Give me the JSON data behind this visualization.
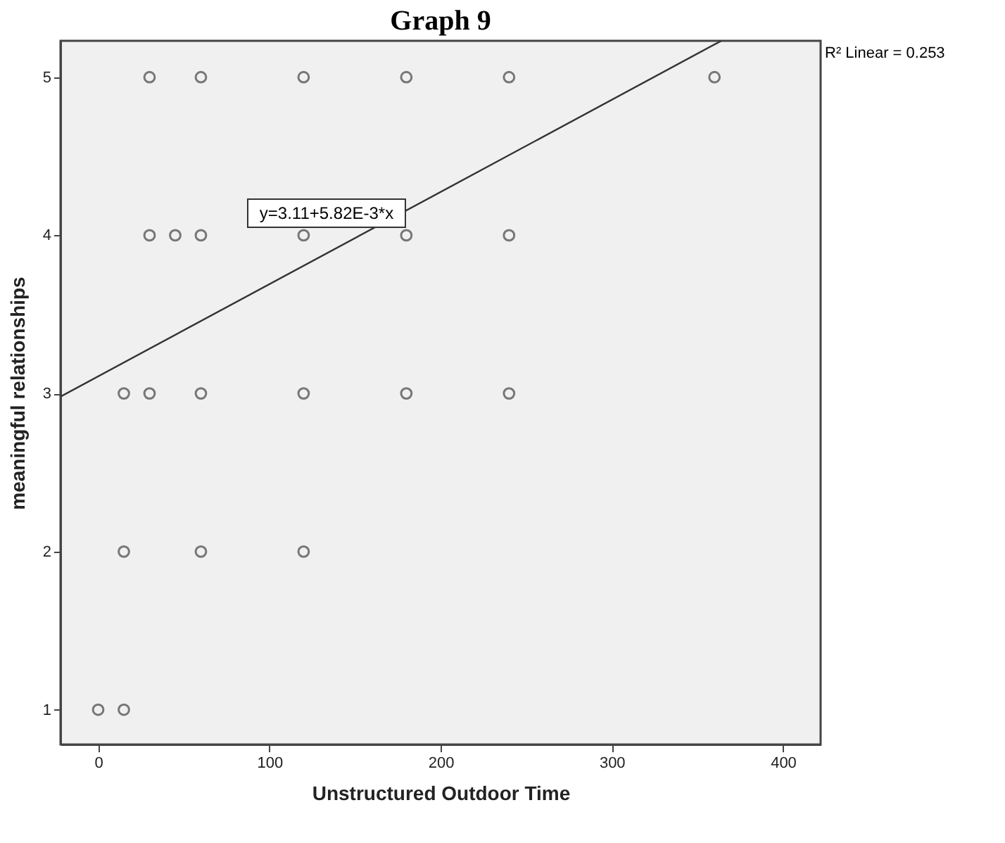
{
  "chart_data": {
    "type": "scatter",
    "title": "Graph 9",
    "xlabel": "Unstructured Outdoor Time",
    "ylabel": "meaningful relationships",
    "series": [
      {
        "color": "#444444",
        "x": [
          30,
          60,
          120,
          180,
          240,
          360,
          30,
          45,
          60,
          120,
          180,
          240,
          15,
          30,
          60,
          120,
          180,
          240,
          15,
          60,
          120,
          0,
          15
        ],
        "values": [
          5,
          5,
          5,
          5,
          5,
          5,
          4,
          4,
          4,
          4,
          4,
          4,
          3,
          3,
          3,
          3,
          3,
          3,
          2,
          2,
          2,
          1,
          1
        ]
      },
      {
        "type": "line",
        "marker": "none",
        "color": "#333333",
        "x": [
          -22,
          364
        ],
        "values": [
          2.98,
          5.23
        ]
      }
    ],
    "annotations": [
      "y=3.11+5.82E-3*x",
      "R² Linear = 0.253"
    ],
    "xlim": [
      -22,
      422
    ],
    "ylim": [
      0.78,
      5.23
    ],
    "xticks": [
      0,
      100,
      200,
      300,
      400
    ],
    "yticks": [
      1,
      2,
      3,
      4,
      5
    ],
    "grid": false,
    "marker": "circle"
  }
}
